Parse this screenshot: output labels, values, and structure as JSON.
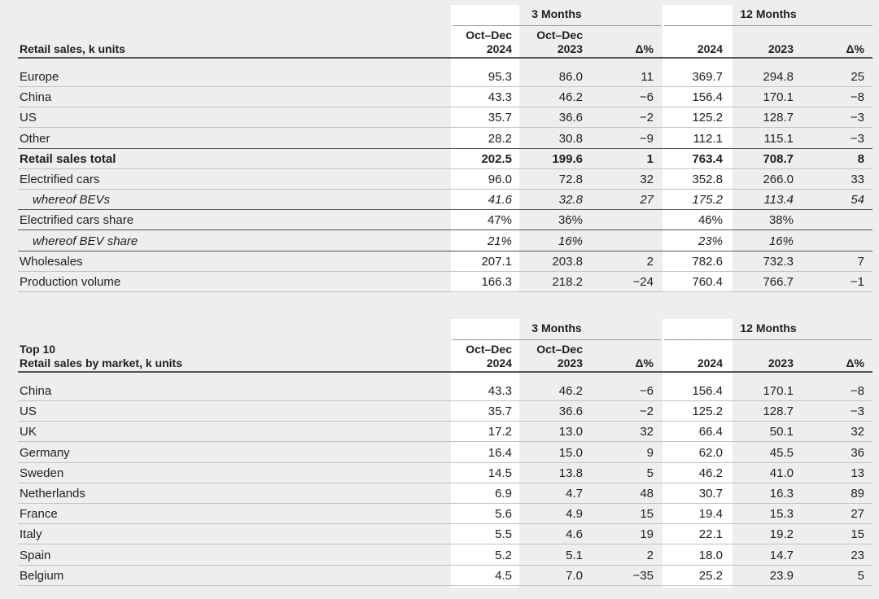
{
  "table1": {
    "group_3m": "3 Months",
    "group_12m": "12 Months",
    "label_lines": [
      "Retail sales, k units"
    ],
    "col_headers": [
      [
        "Oct–Dec",
        "2024"
      ],
      [
        "Oct–Dec",
        "2023"
      ],
      [
        "",
        "Δ%"
      ],
      [
        "",
        "2024"
      ],
      [
        "",
        "2023"
      ],
      [
        "",
        "Δ%"
      ]
    ],
    "rows": [
      {
        "label": "Europe",
        "values": [
          "95.3",
          "86.0",
          "11",
          "369.7",
          "294.8",
          "25"
        ],
        "style": ""
      },
      {
        "label": "China",
        "values": [
          "43.3",
          "46.2",
          "−6",
          "156.4",
          "170.1",
          "−8"
        ],
        "style": ""
      },
      {
        "label": "US",
        "values": [
          "35.7",
          "36.6",
          "−2",
          "125.2",
          "128.7",
          "−3"
        ],
        "style": ""
      },
      {
        "label": "Other",
        "values": [
          "28.2",
          "30.8",
          "−9",
          "112.1",
          "115.1",
          "−3"
        ],
        "style": "thick"
      },
      {
        "label": "Retail sales total",
        "values": [
          "202.5",
          "199.6",
          "1",
          "763.4",
          "708.7",
          "8"
        ],
        "style": "bold"
      },
      {
        "label": "Electrified cars",
        "values": [
          "96.0",
          "72.8",
          "32",
          "352.8",
          "266.0",
          "33"
        ],
        "style": ""
      },
      {
        "label": "whereof BEVs",
        "values": [
          "41.6",
          "32.8",
          "27",
          "175.2",
          "113.4",
          "54"
        ],
        "style": "italic thick"
      },
      {
        "label": "Electrified cars share",
        "values": [
          "47%",
          "36%",
          "",
          "46%",
          "38%",
          ""
        ],
        "style": "thick"
      },
      {
        "label": "whereof BEV share",
        "values": [
          "21%",
          "16%",
          "",
          "23%",
          "16%",
          ""
        ],
        "style": "italic thick"
      },
      {
        "label": "Wholesales",
        "values": [
          "207.1",
          "203.8",
          "2",
          "782.6",
          "732.3",
          "7"
        ],
        "style": ""
      },
      {
        "label": "Production volume",
        "values": [
          "166.3",
          "218.2",
          "−24",
          "760.4",
          "766.7",
          "−1"
        ],
        "style": ""
      }
    ]
  },
  "table2": {
    "group_3m": "3 Months",
    "group_12m": "12 Months",
    "label_lines": [
      "Top 10",
      "Retail sales by market, k units"
    ],
    "col_headers": [
      [
        "Oct–Dec",
        "2024"
      ],
      [
        "Oct–Dec",
        "2023"
      ],
      [
        "",
        "Δ%"
      ],
      [
        "",
        "2024"
      ],
      [
        "",
        "2023"
      ],
      [
        "",
        "Δ%"
      ]
    ],
    "rows": [
      {
        "label": "China",
        "values": [
          "43.3",
          "46.2",
          "−6",
          "156.4",
          "170.1",
          "−8"
        ],
        "style": ""
      },
      {
        "label": "US",
        "values": [
          "35.7",
          "36.6",
          "−2",
          "125.2",
          "128.7",
          "−3"
        ],
        "style": ""
      },
      {
        "label": "UK",
        "values": [
          "17.2",
          "13.0",
          "32",
          "66.4",
          "50.1",
          "32"
        ],
        "style": ""
      },
      {
        "label": "Germany",
        "values": [
          "16.4",
          "15.0",
          "9",
          "62.0",
          "45.5",
          "36"
        ],
        "style": ""
      },
      {
        "label": "Sweden",
        "values": [
          "14.5",
          "13.8",
          "5",
          "46.2",
          "41.0",
          "13"
        ],
        "style": ""
      },
      {
        "label": "Netherlands",
        "values": [
          "6.9",
          "4.7",
          "48",
          "30.7",
          "16.3",
          "89"
        ],
        "style": ""
      },
      {
        "label": "France",
        "values": [
          "5.6",
          "4.9",
          "15",
          "19.4",
          "15.3",
          "27"
        ],
        "style": ""
      },
      {
        "label": "Italy",
        "values": [
          "5.5",
          "4.6",
          "19",
          "22.1",
          "19.2",
          "15"
        ],
        "style": ""
      },
      {
        "label": "Spain",
        "values": [
          "5.2",
          "5.1",
          "2",
          "18.0",
          "14.7",
          "23"
        ],
        "style": ""
      },
      {
        "label": "Belgium",
        "values": [
          "4.5",
          "7.0",
          "−35",
          "25.2",
          "23.9",
          "5"
        ],
        "style": ""
      }
    ]
  }
}
